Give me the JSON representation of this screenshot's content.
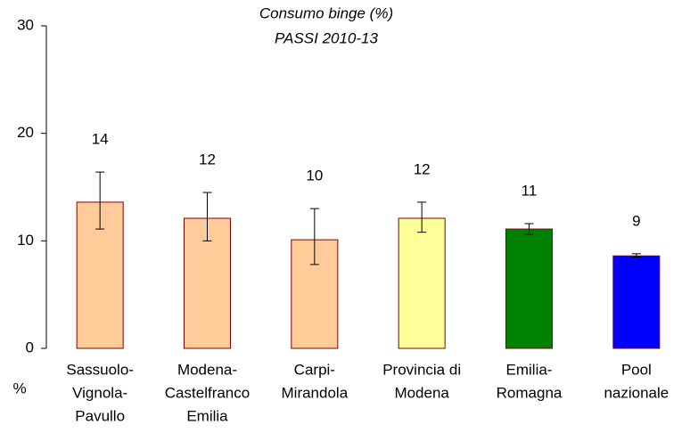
{
  "chart_data": {
    "type": "bar",
    "title": "Consumo binge (%)",
    "subtitle": "PASSI 2010-13",
    "ylabel": "%",
    "categories": [
      [
        "Sassuolo-",
        "Vignola-",
        "Pavullo"
      ],
      [
        "Modena-",
        "Castelfranco",
        "Emilia"
      ],
      [
        "Carpi-",
        "Mirandola"
      ],
      [
        "Provincia di",
        "Modena"
      ],
      [
        "Emilia-",
        "Romagna"
      ],
      [
        "Pool",
        "nazionale"
      ]
    ],
    "values": [
      13.6,
      12.1,
      10.1,
      12.1,
      11.1,
      8.6
    ],
    "value_labels": [
      "14",
      "12",
      "10",
      "12",
      "11",
      "9"
    ],
    "ci_low": [
      11.1,
      10.0,
      7.8,
      10.8,
      10.6,
      8.5
    ],
    "ci_high": [
      16.4,
      14.5,
      13.0,
      13.6,
      11.6,
      8.8
    ],
    "colors": [
      "#ffcc99",
      "#ffcc99",
      "#ffcc99",
      "#ffff99",
      "#008000",
      "#0000ff"
    ],
    "edgecolor": "#800000",
    "ylim": [
      0,
      30
    ],
    "yticks": [
      0,
      10,
      20,
      30
    ],
    "grid": false
  }
}
